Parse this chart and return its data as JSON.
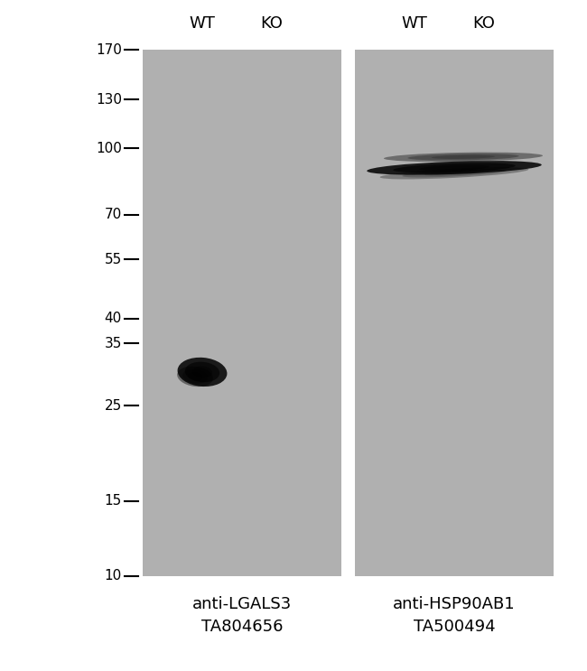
{
  "bg_color": "#c8c8c8",
  "white_bg": "#ffffff",
  "panel_bg": "#b8b8b8",
  "ladder_marks": [
    170,
    130,
    100,
    70,
    55,
    40,
    35,
    25,
    15,
    10
  ],
  "label_left": "anti-LGALS3\nTA804656",
  "label_right": "anti-HSP90AB1\nTA500494",
  "wt_label": "WT",
  "ko_label": "KO",
  "font_size_labels": 13,
  "font_size_ladder": 11,
  "font_size_wt_ko": 13
}
